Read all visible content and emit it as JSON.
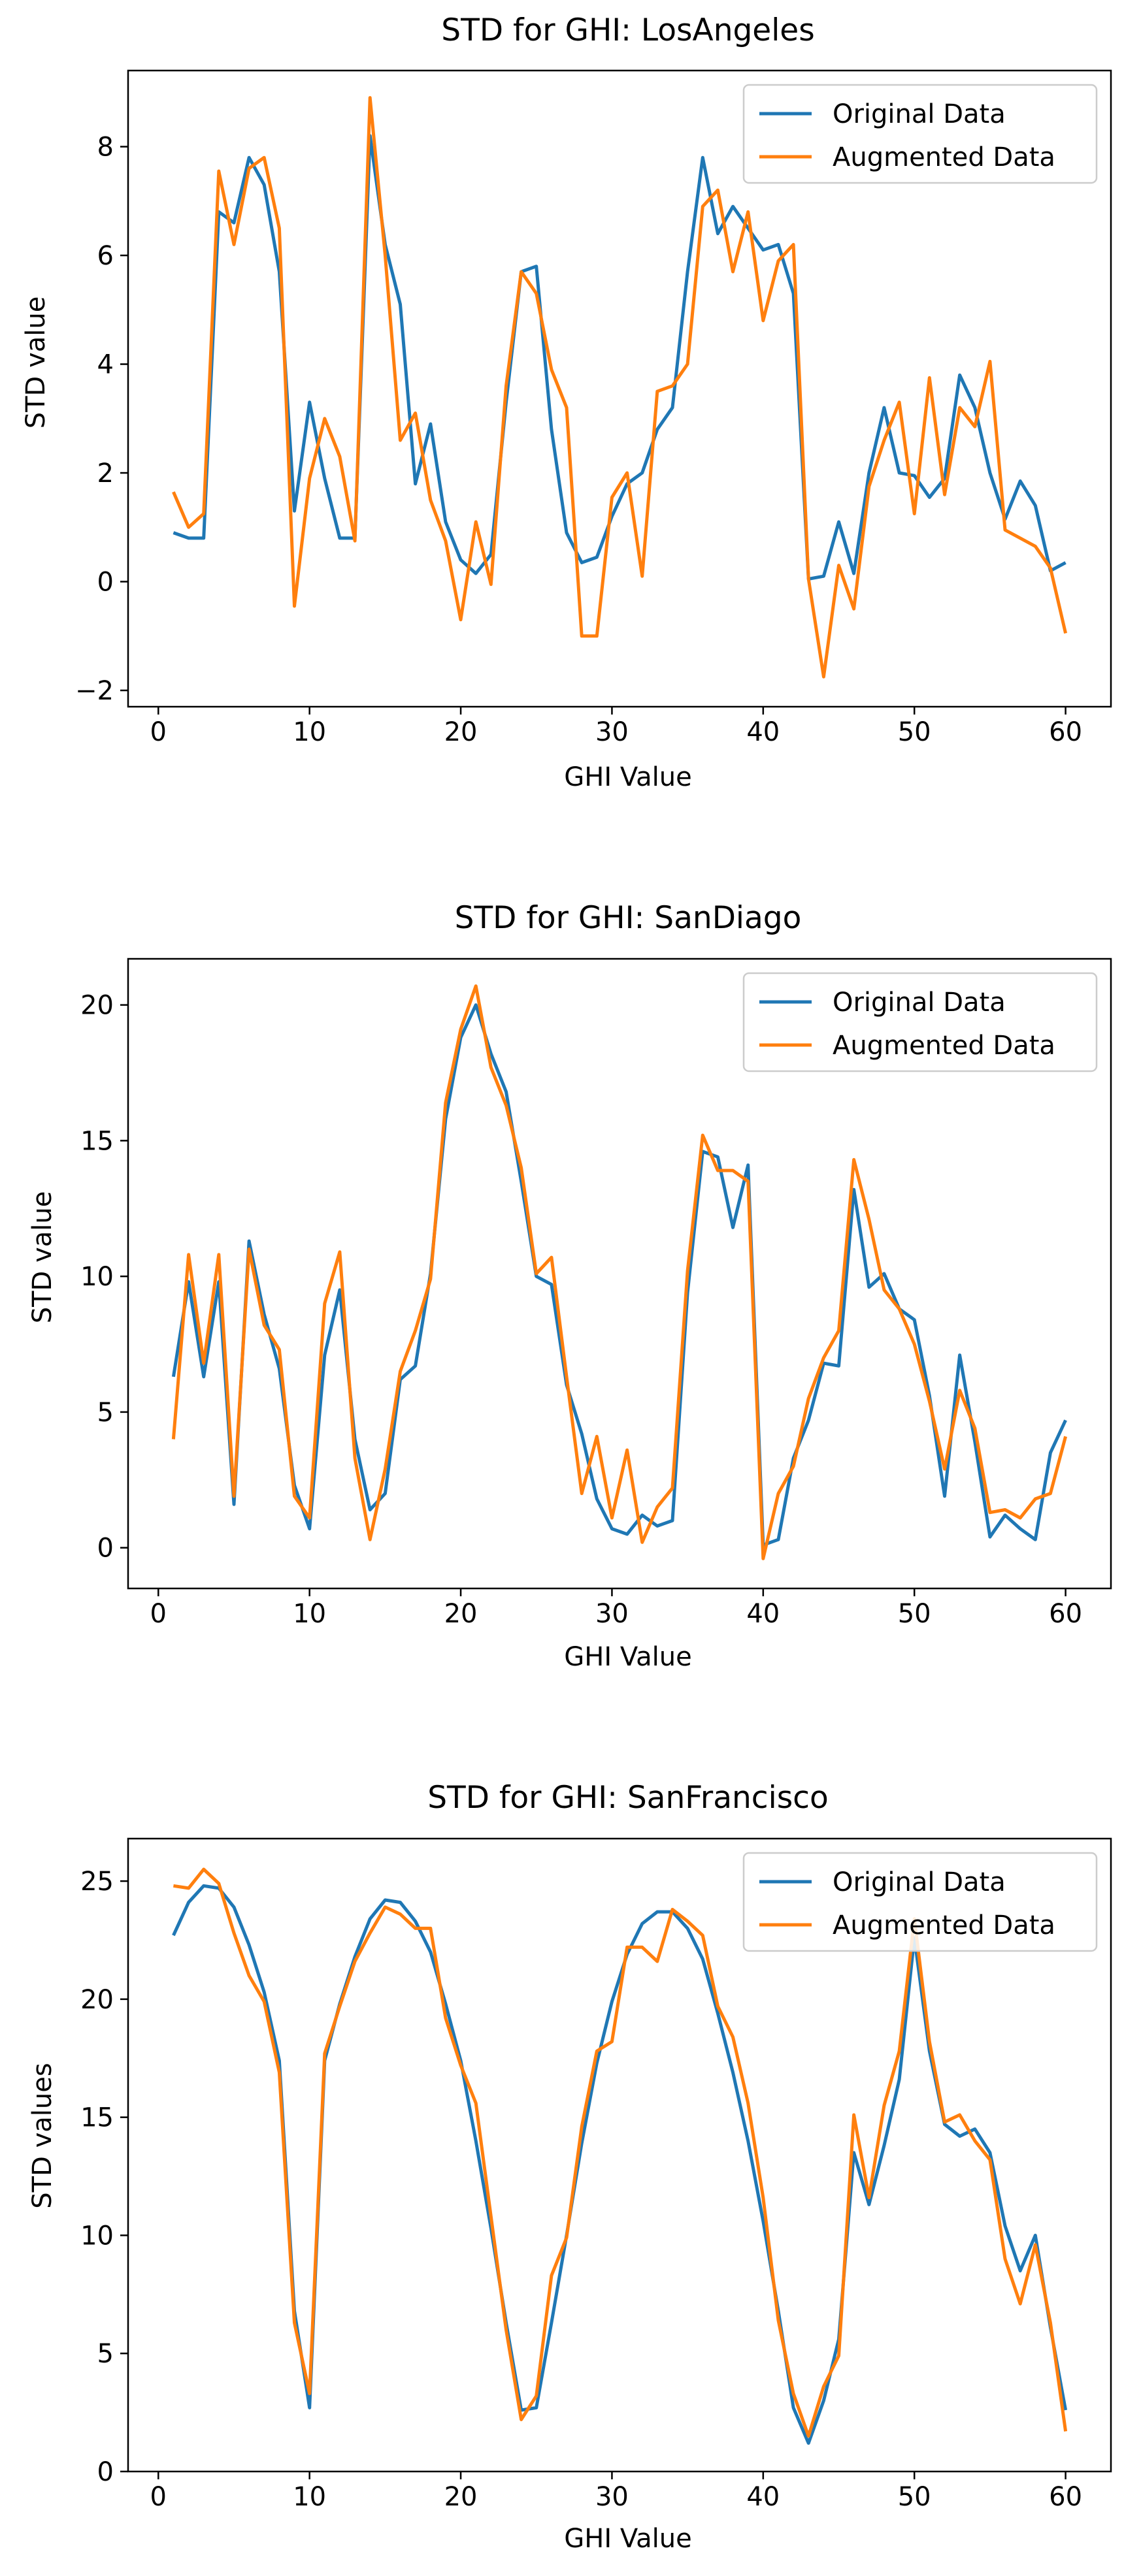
{
  "chart_data": [
    {
      "type": "line",
      "title": "STD for GHI: LosAngeles",
      "xlabel": "GHI Value",
      "ylabel": "STD value",
      "xlim": [
        -2,
        63
      ],
      "ylim": [
        -2.3,
        9.4
      ],
      "xticks": [
        0,
        10,
        20,
        30,
        40,
        50,
        60
      ],
      "xtick_labels": [
        "0",
        "10",
        "20",
        "30",
        "40",
        "50",
        "60"
      ],
      "yticks": [
        -2,
        0,
        2,
        4,
        6,
        8
      ],
      "ytick_labels": [
        "−2",
        "0",
        "2",
        "4",
        "6",
        "8"
      ],
      "grid": false,
      "legend": "top-right",
      "x": [
        1,
        2,
        3,
        4,
        5,
        6,
        7,
        8,
        9,
        10,
        11,
        12,
        13,
        14,
        15,
        16,
        17,
        18,
        19,
        20,
        21,
        22,
        23,
        24,
        25,
        26,
        27,
        28,
        29,
        30,
        31,
        32,
        33,
        34,
        35,
        36,
        37,
        38,
        39,
        40,
        41,
        42,
        43,
        44,
        45,
        46,
        47,
        48,
        49,
        50,
        51,
        52,
        53,
        54,
        55,
        56,
        57,
        58,
        59,
        60
      ],
      "series": [
        {
          "name": "Original Data",
          "color": "#1f77b4",
          "values": [
            0.9,
            0.8,
            0.8,
            6.8,
            6.6,
            7.8,
            7.3,
            5.7,
            1.3,
            3.3,
            1.9,
            0.8,
            0.8,
            8.2,
            6.2,
            5.1,
            1.8,
            2.9,
            1.1,
            0.4,
            0.15,
            0.5,
            3.3,
            5.7,
            5.8,
            2.8,
            0.9,
            0.35,
            0.45,
            1.2,
            1.8,
            2.0,
            2.8,
            3.2,
            5.7,
            7.8,
            6.4,
            6.9,
            6.5,
            6.1,
            6.2,
            5.3,
            0.05,
            0.1,
            1.1,
            0.15,
            2.0,
            3.2,
            2.0,
            1.95,
            1.55,
            1.9,
            3.8,
            3.2,
            2.0,
            1.15,
            1.85,
            1.4,
            0.2,
            0.35
          ]
        },
        {
          "name": "Augmented Data",
          "color": "#ff7f0e",
          "values": [
            1.65,
            1.0,
            1.25,
            7.55,
            6.2,
            7.6,
            7.8,
            6.5,
            -0.45,
            1.9,
            3.0,
            2.3,
            0.75,
            8.9,
            6.0,
            2.6,
            3.1,
            1.5,
            0.75,
            -0.7,
            1.1,
            -0.05,
            3.6,
            5.7,
            5.3,
            3.9,
            3.2,
            -1.0,
            -1.0,
            1.55,
            2.0,
            0.1,
            3.5,
            3.6,
            4.0,
            6.9,
            7.2,
            5.7,
            6.8,
            4.8,
            5.9,
            6.2,
            0.05,
            -1.75,
            0.3,
            -0.5,
            1.75,
            2.6,
            3.3,
            1.25,
            3.75,
            1.6,
            3.2,
            2.85,
            4.05,
            0.95,
            0.8,
            0.65,
            0.25,
            -0.95
          ]
        }
      ]
    },
    {
      "type": "line",
      "title": "STD for GHI: SanDiago",
      "xlabel": "GHI Value",
      "ylabel": "STD value",
      "xlim": [
        -2,
        63
      ],
      "ylim": [
        -1.5,
        21.7
      ],
      "xticks": [
        0,
        10,
        20,
        30,
        40,
        50,
        60
      ],
      "xtick_labels": [
        "0",
        "10",
        "20",
        "30",
        "40",
        "50",
        "60"
      ],
      "yticks": [
        0,
        5,
        10,
        15,
        20
      ],
      "ytick_labels": [
        "0",
        "5",
        "10",
        "15",
        "20"
      ],
      "grid": false,
      "legend": "top-right",
      "x": [
        1,
        2,
        3,
        4,
        5,
        6,
        7,
        8,
        9,
        10,
        11,
        12,
        13,
        14,
        15,
        16,
        17,
        18,
        19,
        20,
        21,
        22,
        23,
        24,
        25,
        26,
        27,
        28,
        29,
        30,
        31,
        32,
        33,
        34,
        35,
        36,
        37,
        38,
        39,
        40,
        41,
        42,
        43,
        44,
        45,
        46,
        47,
        48,
        49,
        50,
        51,
        52,
        53,
        54,
        55,
        56,
        57,
        58,
        59,
        60
      ],
      "series": [
        {
          "name": "Original Data",
          "color": "#1f77b4",
          "values": [
            6.3,
            9.8,
            6.3,
            9.8,
            1.6,
            11.3,
            8.6,
            6.6,
            2.3,
            0.7,
            7.1,
            9.5,
            4.0,
            1.4,
            2.0,
            6.2,
            6.7,
            10.1,
            15.8,
            18.8,
            20.0,
            18.2,
            16.8,
            13.5,
            10.0,
            9.7,
            6.0,
            4.2,
            1.8,
            0.7,
            0.5,
            1.2,
            0.8,
            1.0,
            9.4,
            14.6,
            14.4,
            11.8,
            14.1,
            0.1,
            0.3,
            3.3,
            4.7,
            6.8,
            6.7,
            13.2,
            9.6,
            10.1,
            8.8,
            8.4,
            5.6,
            1.9,
            7.1,
            3.9,
            0.4,
            1.2,
            0.7,
            0.3,
            3.5,
            4.7
          ]
        },
        {
          "name": "Augmented Data",
          "color": "#ff7f0e",
          "values": [
            4.0,
            10.8,
            6.8,
            10.8,
            1.9,
            11.0,
            8.2,
            7.3,
            1.9,
            1.1,
            9.0,
            10.9,
            3.3,
            0.3,
            2.9,
            6.5,
            8.0,
            9.9,
            16.4,
            19.1,
            20.7,
            17.7,
            16.3,
            14.0,
            10.1,
            10.7,
            6.3,
            2.0,
            4.1,
            1.1,
            3.6,
            0.2,
            1.5,
            2.2,
            10.2,
            15.2,
            13.9,
            13.9,
            13.5,
            -0.4,
            2.0,
            3.0,
            5.5,
            7.0,
            8.0,
            14.3,
            12.1,
            9.5,
            8.8,
            7.5,
            5.4,
            2.9,
            5.8,
            4.4,
            1.3,
            1.4,
            1.1,
            1.8,
            2.0,
            4.1
          ]
        }
      ]
    },
    {
      "type": "line",
      "title": "STD for GHI: SanFrancisco",
      "xlabel": "GHI Value",
      "ylabel": "STD values",
      "xlim": [
        -2,
        63
      ],
      "ylim": [
        0,
        26.8
      ],
      "xticks": [
        0,
        10,
        20,
        30,
        40,
        50,
        60
      ],
      "xtick_labels": [
        "0",
        "10",
        "20",
        "30",
        "40",
        "50",
        "60"
      ],
      "yticks": [
        0,
        5,
        10,
        15,
        20,
        25
      ],
      "ytick_labels": [
        "0",
        "5",
        "10",
        "15",
        "20",
        "25"
      ],
      "grid": false,
      "legend": "top-right",
      "x": [
        1,
        2,
        3,
        4,
        5,
        6,
        7,
        8,
        9,
        10,
        11,
        12,
        13,
        14,
        15,
        16,
        17,
        18,
        19,
        20,
        21,
        22,
        23,
        24,
        25,
        26,
        27,
        28,
        29,
        30,
        31,
        32,
        33,
        34,
        35,
        36,
        37,
        38,
        39,
        40,
        41,
        42,
        43,
        44,
        45,
        46,
        47,
        48,
        49,
        50,
        51,
        52,
        53,
        54,
        55,
        56,
        57,
        58,
        59,
        60
      ],
      "series": [
        {
          "name": "Original Data",
          "color": "#1f77b4",
          "values": [
            22.7,
            24.1,
            24.8,
            24.7,
            23.9,
            22.3,
            20.3,
            17.4,
            6.8,
            2.7,
            17.4,
            19.8,
            21.8,
            23.4,
            24.2,
            24.1,
            23.3,
            22.0,
            19.8,
            17.4,
            14.0,
            10.3,
            6.3,
            2.6,
            2.7,
            6.3,
            10.0,
            13.9,
            17.3,
            19.9,
            21.9,
            23.2,
            23.7,
            23.7,
            23.0,
            21.7,
            19.4,
            16.9,
            14.0,
            10.6,
            6.8,
            2.7,
            1.2,
            3.0,
            5.6,
            13.5,
            11.3,
            13.8,
            16.6,
            22.6,
            17.8,
            14.7,
            14.2,
            14.5,
            13.5,
            10.4,
            8.5,
            10.0,
            6.1,
            2.6
          ]
        },
        {
          "name": "Augmented Data",
          "color": "#ff7f0e",
          "values": [
            24.8,
            24.7,
            25.5,
            24.9,
            22.8,
            21.0,
            19.9,
            16.9,
            6.3,
            3.3,
            17.7,
            19.7,
            21.6,
            22.8,
            23.9,
            23.6,
            23.0,
            23.0,
            19.2,
            17.2,
            15.6,
            10.8,
            6.0,
            2.2,
            3.2,
            8.3,
            9.9,
            14.6,
            17.8,
            18.2,
            22.2,
            22.2,
            21.6,
            23.8,
            23.3,
            22.7,
            19.7,
            18.4,
            15.6,
            11.6,
            6.4,
            3.3,
            1.5,
            3.6,
            4.9,
            15.1,
            11.6,
            15.5,
            17.8,
            23.4,
            18.2,
            14.8,
            15.1,
            14.0,
            13.2,
            9.0,
            7.1,
            9.6,
            6.3,
            1.7
          ]
        }
      ]
    }
  ]
}
